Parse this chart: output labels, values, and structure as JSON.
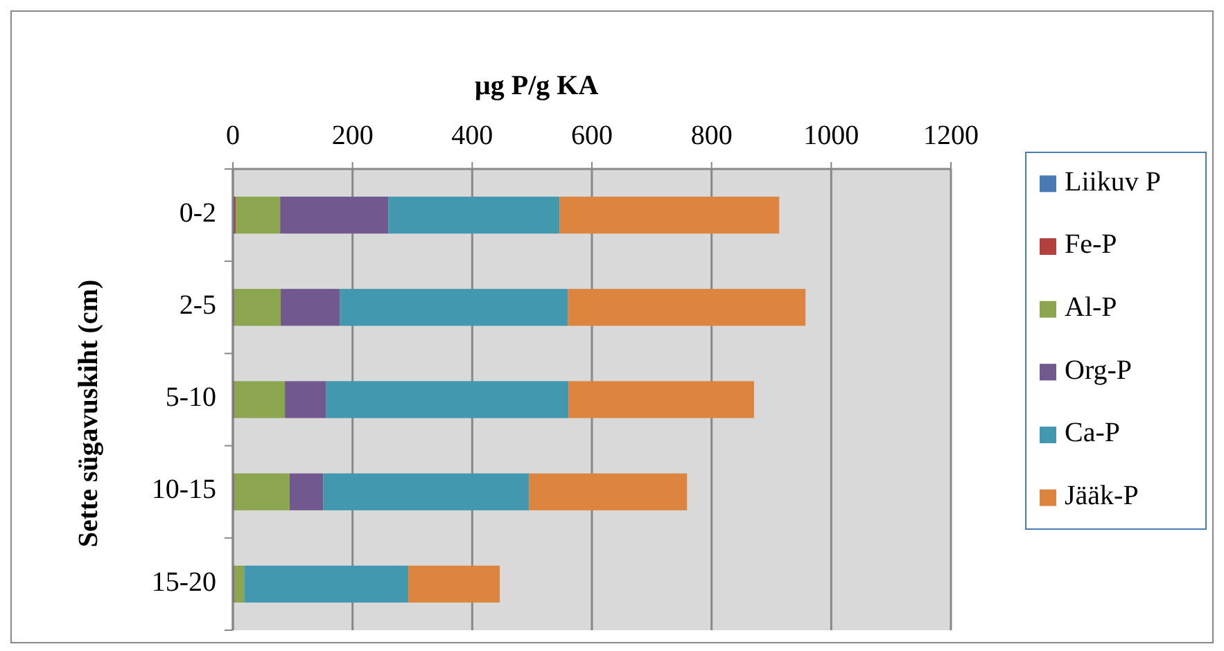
{
  "chart_data": {
    "type": "bar",
    "orientation": "horizontal",
    "stacked": true,
    "xlabel": "µg P/g KA",
    "ylabel": "Sette sügavuskiht (cm)",
    "categories": [
      "0-2",
      "2-5",
      "5-10",
      "10-15",
      "15-20"
    ],
    "series": [
      {
        "name": "Liikuv P",
        "color": "#4a7ab4",
        "values": [
          2,
          1,
          1,
          1,
          1
        ]
      },
      {
        "name": "Fe-P",
        "color": "#b2413e",
        "values": [
          3,
          1,
          1,
          1,
          1
        ]
      },
      {
        "name": "Al-P",
        "color": "#8ba64e",
        "values": [
          74,
          78,
          85,
          93,
          17
        ]
      },
      {
        "name": "Org-P",
        "color": "#71588f",
        "values": [
          181,
          99,
          69,
          56,
          0
        ]
      },
      {
        "name": "Ca-P",
        "color": "#4198af",
        "values": [
          286,
          381,
          405,
          344,
          274
        ]
      },
      {
        "name": "Jääk-P",
        "color": "#dd843f",
        "values": [
          367,
          397,
          310,
          264,
          153
        ]
      }
    ],
    "xlim": [
      0,
      1200
    ],
    "xticks": [
      0,
      200,
      400,
      600,
      800,
      1000,
      1200
    ],
    "grid": "x",
    "legend": "right"
  }
}
